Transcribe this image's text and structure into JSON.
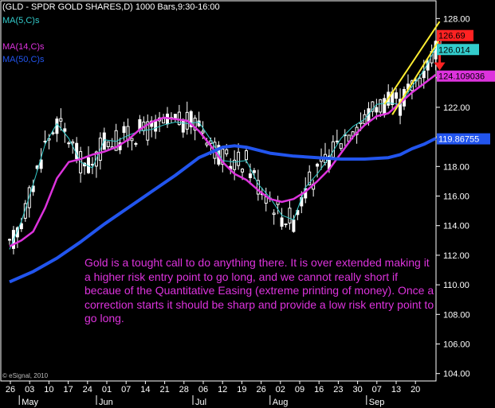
{
  "chart_data": {
    "type": "candlestick",
    "title": "(GLD - SPDR GOLD SHARES,D) 1000 Bars,9:30-16:00",
    "ylim": [
      103.5,
      129.2
    ],
    "y_ticks": [
      "128.00",
      "126.00",
      "124.00",
      "122.00",
      "120.00",
      "118.00",
      "116.00",
      "114.00",
      "112.00",
      "110.00",
      "108.00",
      "106.00",
      "104.00"
    ],
    "x_day_labels": [
      "26",
      "03",
      "10",
      "17",
      "24",
      "01",
      "07",
      "14",
      "21",
      "28",
      "06",
      "12",
      "19",
      "26",
      "02",
      "09",
      "16",
      "23",
      "30",
      "07",
      "13",
      "20"
    ],
    "x_month_labels": [
      "May",
      "Jun",
      "Jul",
      "Aug",
      "Sep"
    ],
    "legend": [
      {
        "name": "MA(5,C)s",
        "color": "#33cccc"
      },
      {
        "name": "MA(14,C)s",
        "color": "#dd33dd"
      },
      {
        "name": "MA(50,C)s",
        "color": "#2255ee"
      }
    ],
    "series": [
      {
        "name": "MA(5,C)s",
        "color": "#33cccc",
        "width": 1,
        "points": [
          [
            0,
            112.4
          ],
          [
            3,
            114.3
          ],
          [
            6,
            116.8
          ],
          [
            9,
            119.5
          ],
          [
            12,
            120.9
          ],
          [
            15,
            119.9
          ],
          [
            18,
            118.3
          ],
          [
            21,
            117.9
          ],
          [
            24,
            119.8
          ],
          [
            27,
            119.7
          ],
          [
            30,
            120.1
          ],
          [
            33,
            120.4
          ],
          [
            36,
            120.5
          ],
          [
            39,
            120.8
          ],
          [
            42,
            121.0
          ],
          [
            45,
            120.9
          ],
          [
            48,
            121.0
          ],
          [
            51,
            119.8
          ],
          [
            54,
            118.4
          ],
          [
            57,
            118.3
          ],
          [
            60,
            118.4
          ],
          [
            63,
            116.8
          ],
          [
            66,
            115.9
          ],
          [
            69,
            114.7
          ],
          [
            72,
            114.4
          ],
          [
            75,
            116.6
          ],
          [
            78,
            117.5
          ],
          [
            81,
            118.6
          ],
          [
            84,
            119.9
          ],
          [
            87,
            120.7
          ],
          [
            90,
            121.2
          ],
          [
            93,
            122.2
          ],
          [
            96,
            122.3
          ],
          [
            99,
            122.2
          ],
          [
            102,
            123.4
          ],
          [
            105,
            124.5
          ],
          [
            108,
            126.0
          ]
        ]
      },
      {
        "name": "MA(14,C)s",
        "color": "#dd33dd",
        "width": 2.5,
        "points": [
          [
            0,
            112.6
          ],
          [
            3,
            113.0
          ],
          [
            6,
            113.6
          ],
          [
            9,
            115.2
          ],
          [
            12,
            117.2
          ],
          [
            15,
            118.3
          ],
          [
            18,
            118.5
          ],
          [
            21,
            118.8
          ],
          [
            24,
            119.0
          ],
          [
            27,
            119.3
          ],
          [
            30,
            119.8
          ],
          [
            33,
            120.5
          ],
          [
            36,
            121.0
          ],
          [
            39,
            121.3
          ],
          [
            42,
            121.2
          ],
          [
            45,
            121.1
          ],
          [
            48,
            120.4
          ],
          [
            51,
            119.4
          ],
          [
            54,
            118.3
          ],
          [
            57,
            117.5
          ],
          [
            60,
            117.1
          ],
          [
            63,
            116.4
          ],
          [
            66,
            115.8
          ],
          [
            69,
            115.6
          ],
          [
            72,
            115.8
          ],
          [
            75,
            116.3
          ],
          [
            78,
            117.0
          ],
          [
            81,
            117.8
          ],
          [
            84,
            118.9
          ],
          [
            87,
            120.0
          ],
          [
            90,
            120.8
          ],
          [
            93,
            121.4
          ],
          [
            96,
            121.6
          ],
          [
            99,
            122.3
          ],
          [
            102,
            123.0
          ],
          [
            105,
            123.6
          ],
          [
            108,
            124.2
          ]
        ]
      },
      {
        "name": "MA(50,C)s",
        "color": "#2255ee",
        "width": 4,
        "points": [
          [
            0,
            110.2
          ],
          [
            6,
            110.9
          ],
          [
            12,
            111.8
          ],
          [
            18,
            112.9
          ],
          [
            24,
            114.1
          ],
          [
            30,
            115.2
          ],
          [
            36,
            116.3
          ],
          [
            42,
            117.4
          ],
          [
            48,
            118.6
          ],
          [
            54,
            119.3
          ],
          [
            57,
            119.4
          ],
          [
            60,
            119.3
          ],
          [
            66,
            118.9
          ],
          [
            72,
            118.7
          ],
          [
            78,
            118.6
          ],
          [
            84,
            118.5
          ],
          [
            90,
            118.5
          ],
          [
            96,
            118.6
          ],
          [
            99,
            118.8
          ],
          [
            102,
            119.2
          ],
          [
            105,
            119.5
          ],
          [
            108,
            119.9
          ]
        ]
      }
    ],
    "channel_lines": [
      {
        "x1": 95,
        "y1": 122.2,
        "x2": 109,
        "y2": 127.8
      },
      {
        "x1": 97,
        "y1": 121.5,
        "x2": 109,
        "y2": 126.6
      }
    ],
    "annotations": [
      {
        "type": "down-arrow",
        "x": 109,
        "y_from": 126.4,
        "y_to": 124.6
      }
    ],
    "right_labels": [
      {
        "text": "126.69",
        "y": 126.69,
        "bg": "#ff2222",
        "fg": "#000000"
      },
      {
        "text": "126.014",
        "y": 126.014,
        "bg": "#33cccc",
        "fg": "#000000"
      },
      {
        "text": "124.109036",
        "y": 124.109,
        "bg": "#dd33dd",
        "fg": "#000000"
      },
      {
        "text": "119.86755",
        "y": 119.868,
        "bg": "#2255ee",
        "fg": "#ffffff"
      }
    ],
    "note": "Gold is a tought call to do anything there. It is over extended making it a higher risk entry point to go long, and we cannot really short if becaue of the Quantitative Easing (extreme printing of money). Once a correction starts it should be sharp and provide a low risk entry point to go long.",
    "copyright": "© eSignal, 2010"
  }
}
